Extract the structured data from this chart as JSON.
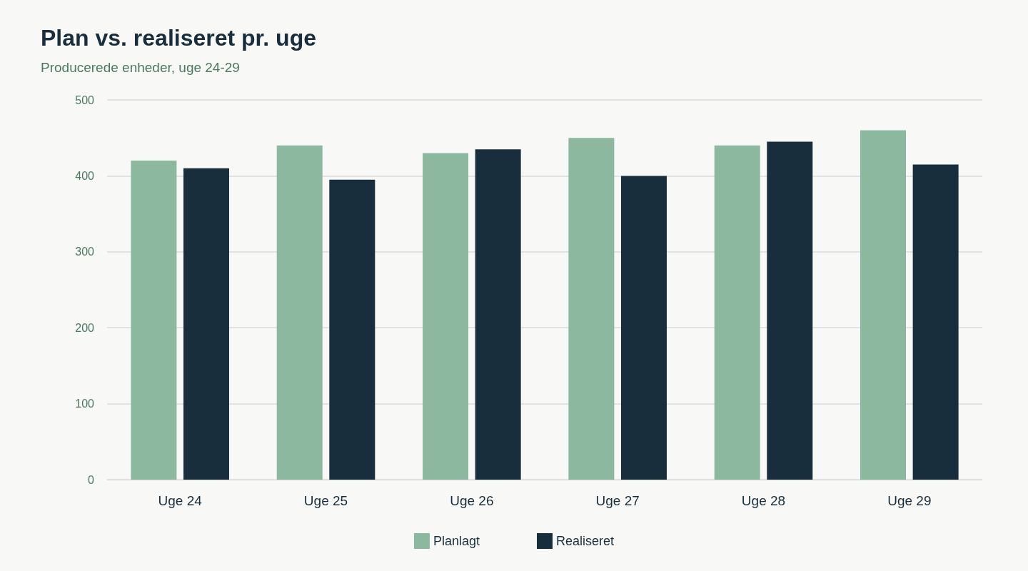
{
  "chart_data": {
    "type": "bar",
    "title": "Plan vs. realiseret pr. uge",
    "subtitle": "Producerede enheder, uge 24-29",
    "categories": [
      "Uge 24",
      "Uge 25",
      "Uge 26",
      "Uge 27",
      "Uge 28",
      "Uge 29"
    ],
    "series": [
      {
        "name": "Planlagt",
        "color": "#8cb8a0",
        "values": [
          420,
          440,
          430,
          450,
          440,
          460
        ]
      },
      {
        "name": "Realiseret",
        "color": "#182e3d",
        "values": [
          410,
          395,
          435,
          400,
          445,
          415
        ]
      }
    ],
    "ylim": [
      0,
      500
    ],
    "yticks": [
      0,
      100,
      200,
      300,
      400,
      500
    ],
    "grid": "y",
    "legend": "bottom"
  }
}
